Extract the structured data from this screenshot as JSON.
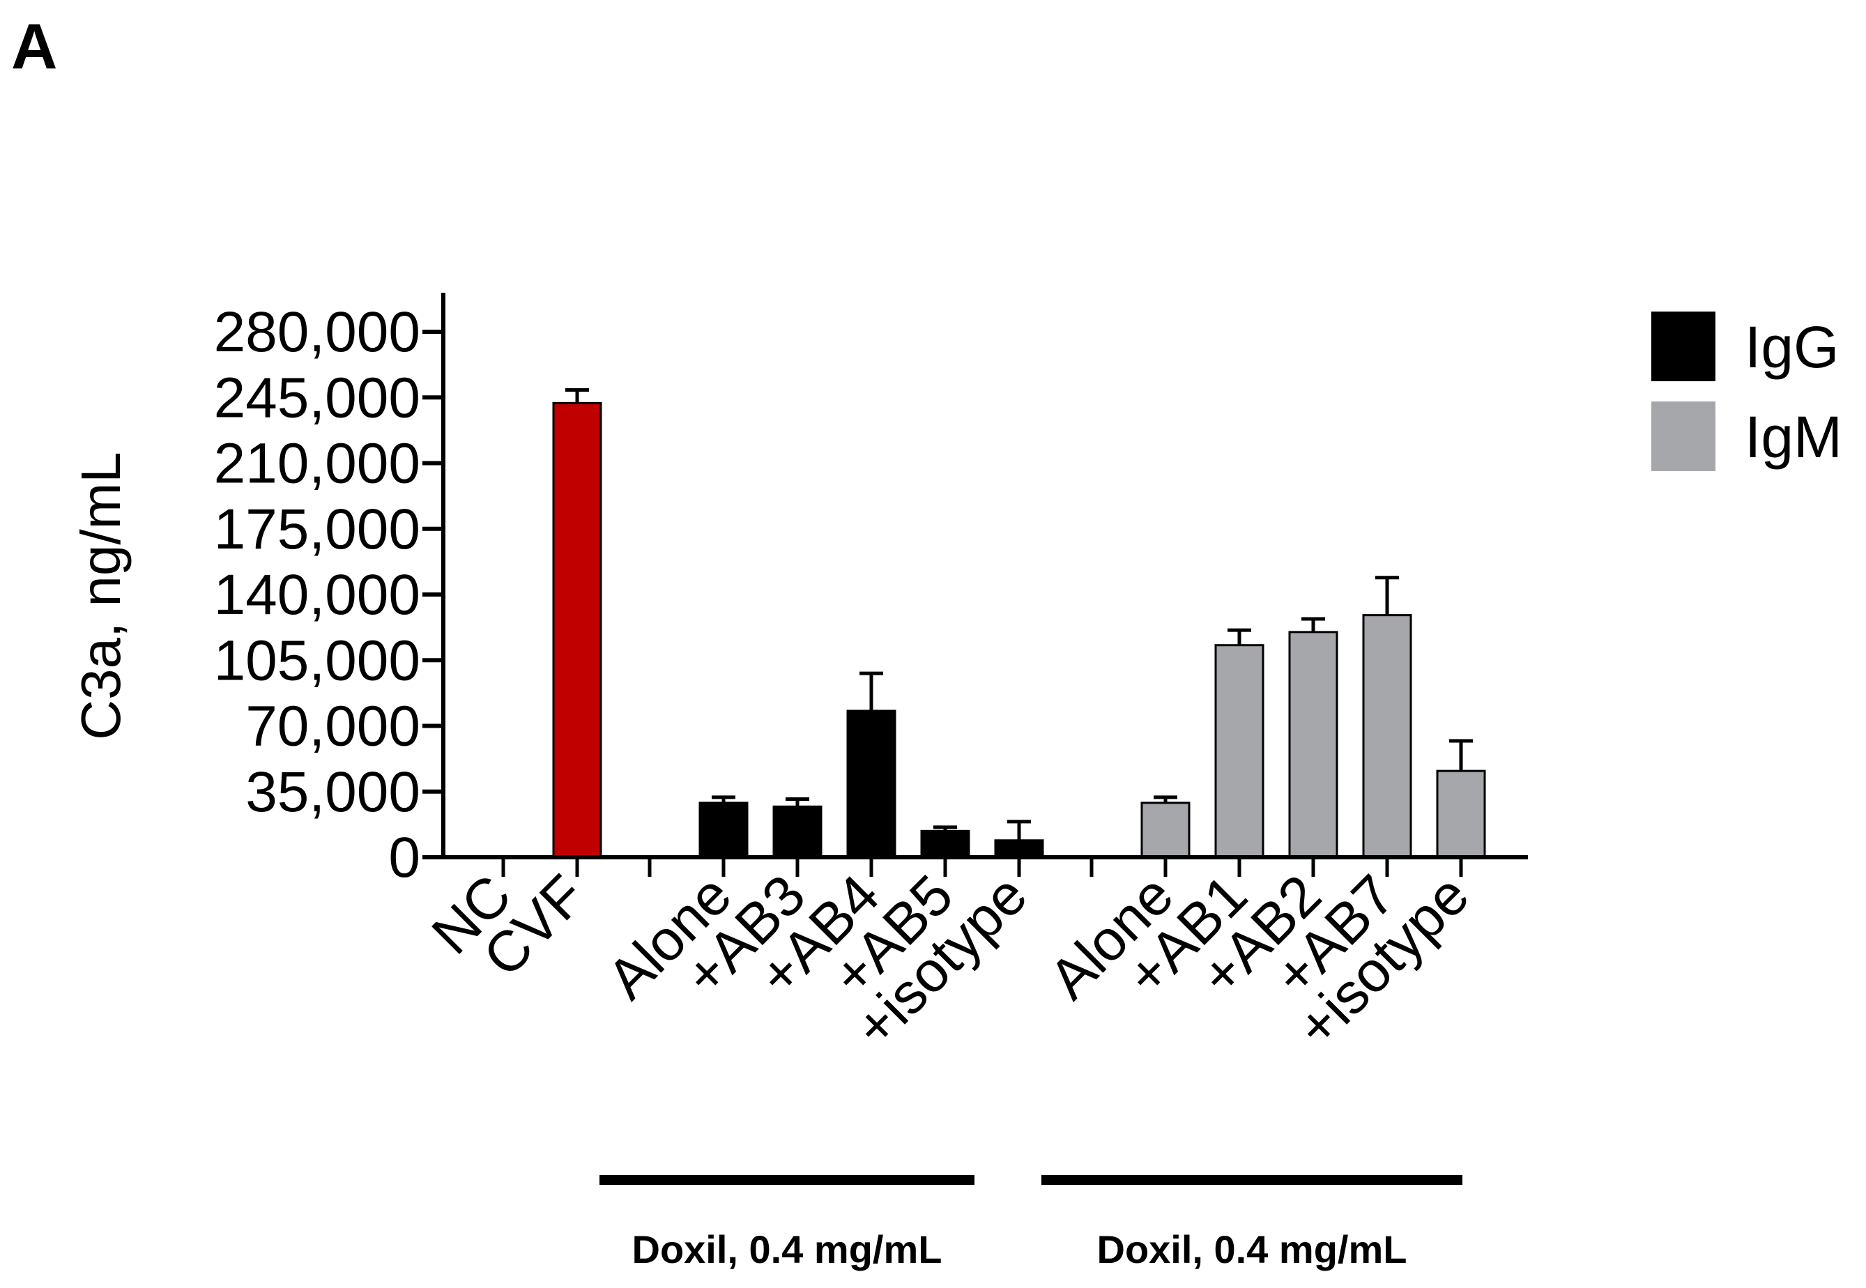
{
  "panel_label": "A",
  "chart_data": {
    "type": "bar",
    "title": "",
    "xlabel": "",
    "ylabel": "C3a, ng/mL",
    "ylim": [
      0,
      280000
    ],
    "yticks": [
      0,
      35000,
      70000,
      105000,
      140000,
      175000,
      210000,
      245000,
      280000
    ],
    "ytick_labels": [
      "0",
      "35,000",
      "70,000",
      "105,000",
      "140,000",
      "175,000",
      "210,000",
      "245,000",
      "280,000"
    ],
    "categories": [
      "NC",
      "CVF",
      "Alone",
      "+AB3",
      "+AB4",
      "+AB5",
      "+isotype",
      "Alone",
      "+AB1",
      "+AB2",
      "+AB7",
      "+isotype"
    ],
    "values": [
      0,
      242000,
      29000,
      27000,
      78000,
      14000,
      9000,
      29000,
      113000,
      120000,
      129000,
      46000
    ],
    "errors": [
      0,
      7000,
      3000,
      4000,
      20000,
      2000,
      10000,
      3000,
      8000,
      7000,
      20000,
      16000
    ],
    "bar_colors": [
      "#000000",
      "#c00000",
      "#000000",
      "#000000",
      "#000000",
      "#000000",
      "#000000",
      "#a6a7ab",
      "#a6a7ab",
      "#a6a7ab",
      "#a6a7ab",
      "#a6a7ab"
    ],
    "legend": {
      "position": "top-right",
      "entries": [
        {
          "label": "IgG",
          "color": "#000000"
        },
        {
          "label": "IgM",
          "color": "#a6a7ab"
        }
      ]
    },
    "groups": [
      {
        "label": "Doxil, 0.4 mg/mL",
        "from_category": 2,
        "to_category": 6
      },
      {
        "label": "Doxil, 0.4 mg/mL",
        "from_category": 7,
        "to_category": 11
      }
    ],
    "grid": false
  }
}
